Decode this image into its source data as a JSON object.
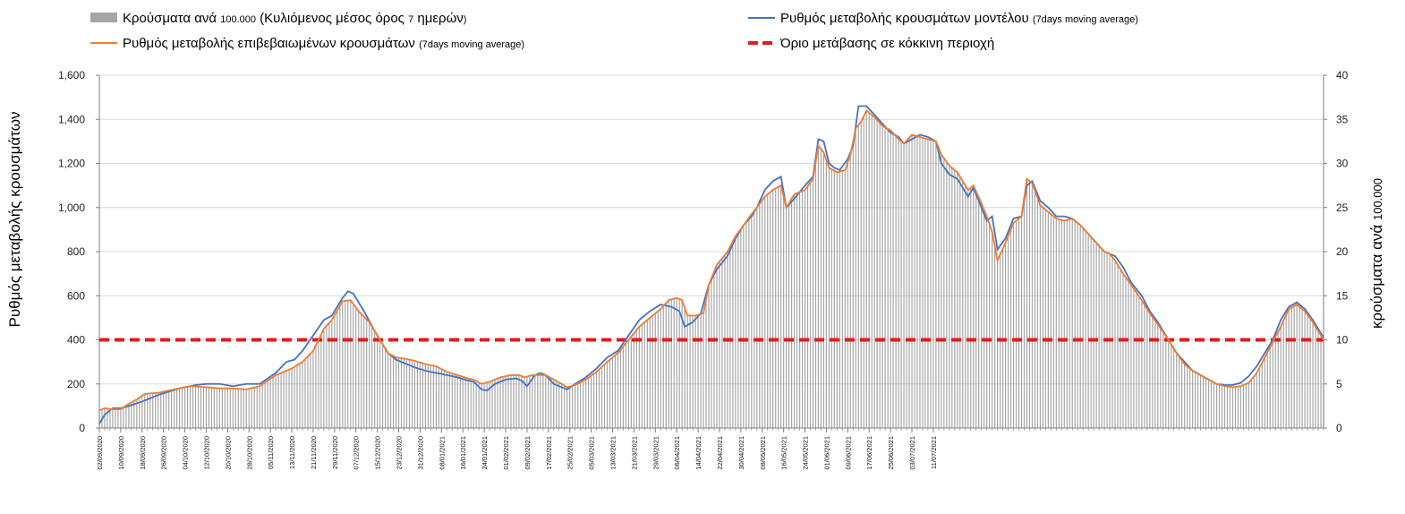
{
  "chart_data": {
    "type": "bar+line",
    "legend": {
      "bars_main": "Κρούσματα ανά",
      "bars_unit": "100.000",
      "bars_paren_open": "(Κυλιόμενος μέσος όρος",
      "bars_seven": "7",
      "bars_paren_close": "ημερών",
      "bars_close_paren": ")",
      "model_main": "Ρυθμός μεταβολής κρουσμάτων μοντέλου",
      "model_small": "(7days moving average)",
      "confirmed_main": "Ρυθμός μεταβολής επιβεβαιωμένων κρουσμάτων",
      "confirmed_small": "(7days moving average)",
      "threshold_main": "Όριο μετάβασης σε κόκκινη περιοχή"
    },
    "ylabel_left": "Ρυθμός μεταβολής κρουσμάτων",
    "ylabel_right_main": "κρούσματα ανά",
    "ylabel_right_unit": "100.000",
    "ylim_left": [
      0,
      1600
    ],
    "ylim_right": [
      0,
      40
    ],
    "left_ticks": [
      "0",
      "200",
      "400",
      "600",
      "800",
      "1,000",
      "1,200",
      "1,400",
      "1,600"
    ],
    "right_ticks": [
      "0",
      "5",
      "10",
      "15",
      "20",
      "25",
      "30",
      "35",
      "40"
    ],
    "x_tick_labels": [
      "02/09/2020",
      "10/09/2020",
      "18/09/2020",
      "26/09/2020",
      "04/10/2020",
      "12/10/2020",
      "20/10/2020",
      "28/10/2020",
      "05/11/2020",
      "13/11/2020",
      "21/11/2020",
      "29/11/2020",
      "07/12/2020",
      "15/12/2020",
      "23/12/2020",
      "31/12/2020",
      "08/01/2021",
      "16/01/2021",
      "24/01/2021",
      "01/02/2021",
      "09/02/2021",
      "17/02/2021",
      "25/02/2021",
      "05/03/2021",
      "13/03/2021",
      "21/03/2021",
      "29/03/2021",
      "06/04/2021",
      "14/04/2021",
      "22/04/2021",
      "30/04/2021",
      "08/05/2021",
      "16/05/2021",
      "24/05/2021",
      "01/06/2021",
      "09/06/2021",
      "17/06/2021",
      "25/06/2021",
      "03/07/2021",
      "11/07/2021"
    ],
    "threshold": 400,
    "colors": {
      "bars": "#a6a6a6",
      "model": "#4472c4",
      "confirmed": "#ed7d31",
      "threshold": "#e41a1c"
    },
    "model_keypoints": [
      [
        0,
        20
      ],
      [
        2,
        60
      ],
      [
        5,
        90
      ],
      [
        8,
        90
      ],
      [
        11,
        100
      ],
      [
        16,
        120
      ],
      [
        22,
        150
      ],
      [
        30,
        180
      ],
      [
        36,
        195
      ],
      [
        40,
        200
      ],
      [
        45,
        200
      ],
      [
        50,
        190
      ],
      [
        55,
        200
      ],
      [
        60,
        200
      ],
      [
        66,
        250
      ],
      [
        70,
        300
      ],
      [
        73,
        310
      ],
      [
        76,
        350
      ],
      [
        80,
        420
      ],
      [
        84,
        490
      ],
      [
        87,
        510
      ],
      [
        91,
        590
      ],
      [
        93,
        620
      ],
      [
        95,
        610
      ],
      [
        99,
        530
      ],
      [
        103,
        440
      ],
      [
        105,
        400
      ],
      [
        108,
        340
      ],
      [
        111,
        310
      ],
      [
        114,
        295
      ],
      [
        118,
        275
      ],
      [
        122,
        260
      ],
      [
        126,
        250
      ],
      [
        130,
        240
      ],
      [
        134,
        230
      ],
      [
        138,
        215
      ],
      [
        140,
        210
      ],
      [
        143,
        175
      ],
      [
        145,
        170
      ],
      [
        148,
        200
      ],
      [
        152,
        220
      ],
      [
        156,
        225
      ],
      [
        158,
        215
      ],
      [
        160,
        190
      ],
      [
        163,
        240
      ],
      [
        165,
        250
      ],
      [
        167,
        240
      ],
      [
        170,
        200
      ],
      [
        173,
        185
      ],
      [
        175,
        175
      ],
      [
        178,
        200
      ],
      [
        182,
        230
      ],
      [
        186,
        270
      ],
      [
        190,
        320
      ],
      [
        194,
        350
      ],
      [
        198,
        420
      ],
      [
        202,
        490
      ],
      [
        206,
        530
      ],
      [
        210,
        560
      ],
      [
        214,
        550
      ],
      [
        217,
        530
      ],
      [
        219,
        460
      ],
      [
        222,
        480
      ],
      [
        225,
        520
      ],
      [
        228,
        650
      ],
      [
        231,
        720
      ],
      [
        235,
        780
      ],
      [
        238,
        860
      ],
      [
        241,
        920
      ],
      [
        244,
        960
      ],
      [
        246,
        1000
      ],
      [
        249,
        1080
      ],
      [
        252,
        1120
      ],
      [
        255,
        1140
      ],
      [
        257,
        1000
      ],
      [
        260,
        1040
      ],
      [
        264,
        1100
      ],
      [
        267,
        1140
      ],
      [
        269,
        1310
      ],
      [
        271,
        1300
      ],
      [
        273,
        1200
      ],
      [
        275,
        1180
      ],
      [
        277,
        1170
      ],
      [
        280,
        1220
      ],
      [
        282,
        1280
      ],
      [
        284,
        1460
      ],
      [
        287,
        1460
      ],
      [
        290,
        1420
      ],
      [
        293,
        1380
      ],
      [
        296,
        1340
      ],
      [
        299,
        1320
      ],
      [
        301,
        1290
      ],
      [
        304,
        1310
      ],
      [
        307,
        1330
      ],
      [
        310,
        1320
      ],
      [
        313,
        1300
      ],
      [
        315,
        1200
      ],
      [
        318,
        1150
      ],
      [
        321,
        1130
      ],
      [
        325,
        1050
      ],
      [
        327,
        1090
      ],
      [
        330,
        1000
      ],
      [
        332,
        940
      ],
      [
        334,
        960
      ],
      [
        336,
        810
      ],
      [
        339,
        860
      ],
      [
        342,
        950
      ],
      [
        345,
        960
      ],
      [
        347,
        1100
      ],
      [
        349,
        1120
      ],
      [
        352,
        1030
      ],
      [
        355,
        1000
      ],
      [
        358,
        960
      ],
      [
        361,
        960
      ],
      [
        364,
        950
      ],
      [
        367,
        920
      ],
      [
        370,
        880
      ],
      [
        373,
        840
      ],
      [
        376,
        800
      ],
      [
        378,
        790
      ],
      [
        380,
        780
      ],
      [
        383,
        730
      ],
      [
        386,
        660
      ],
      [
        390,
        600
      ],
      [
        393,
        530
      ],
      [
        396,
        480
      ],
      [
        400,
        400
      ],
      [
        403,
        340
      ],
      [
        406,
        300
      ],
      [
        409,
        260
      ],
      [
        412,
        240
      ],
      [
        415,
        220
      ],
      [
        418,
        200
      ],
      [
        421,
        195
      ],
      [
        424,
        195
      ],
      [
        427,
        205
      ],
      [
        430,
        235
      ],
      [
        433,
        280
      ],
      [
        436,
        340
      ],
      [
        439,
        400
      ],
      [
        442,
        490
      ],
      [
        445,
        550
      ],
      [
        448,
        570
      ],
      [
        451,
        540
      ],
      [
        454,
        490
      ],
      [
        456,
        450
      ],
      [
        458,
        410
      ]
    ],
    "confirmed_keypoints": [
      [
        0,
        80
      ],
      [
        2,
        90
      ],
      [
        5,
        85
      ],
      [
        8,
        85
      ],
      [
        11,
        110
      ],
      [
        14,
        130
      ],
      [
        17,
        155
      ],
      [
        22,
        160
      ],
      [
        28,
        175
      ],
      [
        34,
        190
      ],
      [
        40,
        185
      ],
      [
        45,
        180
      ],
      [
        50,
        180
      ],
      [
        55,
        175
      ],
      [
        60,
        190
      ],
      [
        66,
        240
      ],
      [
        72,
        270
      ],
      [
        76,
        300
      ],
      [
        80,
        350
      ],
      [
        84,
        450
      ],
      [
        87,
        490
      ],
      [
        91,
        575
      ],
      [
        94,
        580
      ],
      [
        97,
        530
      ],
      [
        101,
        480
      ],
      [
        105,
        400
      ],
      [
        108,
        340
      ],
      [
        111,
        320
      ],
      [
        114,
        315
      ],
      [
        118,
        305
      ],
      [
        122,
        290
      ],
      [
        126,
        280
      ],
      [
        130,
        255
      ],
      [
        134,
        240
      ],
      [
        138,
        225
      ],
      [
        140,
        220
      ],
      [
        143,
        200
      ],
      [
        146,
        210
      ],
      [
        150,
        230
      ],
      [
        154,
        240
      ],
      [
        157,
        240
      ],
      [
        159,
        230
      ],
      [
        162,
        240
      ],
      [
        165,
        240
      ],
      [
        167,
        240
      ],
      [
        170,
        220
      ],
      [
        173,
        200
      ],
      [
        175,
        185
      ],
      [
        178,
        195
      ],
      [
        182,
        220
      ],
      [
        186,
        255
      ],
      [
        190,
        300
      ],
      [
        194,
        340
      ],
      [
        198,
        400
      ],
      [
        202,
        460
      ],
      [
        206,
        500
      ],
      [
        210,
        540
      ],
      [
        213,
        580
      ],
      [
        216,
        590
      ],
      [
        218,
        580
      ],
      [
        220,
        510
      ],
      [
        223,
        510
      ],
      [
        226,
        520
      ],
      [
        228,
        650
      ],
      [
        231,
        740
      ],
      [
        235,
        800
      ],
      [
        238,
        870
      ],
      [
        241,
        920
      ],
      [
        244,
        970
      ],
      [
        246,
        1000
      ],
      [
        249,
        1050
      ],
      [
        252,
        1080
      ],
      [
        255,
        1100
      ],
      [
        257,
        1000
      ],
      [
        260,
        1060
      ],
      [
        264,
        1080
      ],
      [
        267,
        1130
      ],
      [
        269,
        1280
      ],
      [
        271,
        1250
      ],
      [
        273,
        1180
      ],
      [
        276,
        1160
      ],
      [
        279,
        1170
      ],
      [
        281,
        1240
      ],
      [
        283,
        1360
      ],
      [
        285,
        1390
      ],
      [
        287,
        1440
      ],
      [
        290,
        1410
      ],
      [
        293,
        1370
      ],
      [
        296,
        1350
      ],
      [
        299,
        1310
      ],
      [
        301,
        1290
      ],
      [
        304,
        1330
      ],
      [
        307,
        1320
      ],
      [
        310,
        1310
      ],
      [
        313,
        1300
      ],
      [
        315,
        1240
      ],
      [
        318,
        1190
      ],
      [
        321,
        1160
      ],
      [
        325,
        1080
      ],
      [
        327,
        1100
      ],
      [
        330,
        1020
      ],
      [
        332,
        960
      ],
      [
        334,
        890
      ],
      [
        336,
        760
      ],
      [
        339,
        840
      ],
      [
        342,
        930
      ],
      [
        345,
        960
      ],
      [
        347,
        1130
      ],
      [
        349,
        1110
      ],
      [
        352,
        1010
      ],
      [
        355,
        980
      ],
      [
        358,
        950
      ],
      [
        361,
        940
      ],
      [
        364,
        950
      ],
      [
        367,
        920
      ],
      [
        370,
        880
      ],
      [
        373,
        840
      ],
      [
        376,
        800
      ],
      [
        378,
        790
      ],
      [
        380,
        760
      ],
      [
        383,
        700
      ],
      [
        386,
        650
      ],
      [
        390,
        580
      ],
      [
        393,
        520
      ],
      [
        396,
        470
      ],
      [
        400,
        400
      ],
      [
        403,
        340
      ],
      [
        406,
        290
      ],
      [
        409,
        260
      ],
      [
        412,
        240
      ],
      [
        415,
        220
      ],
      [
        418,
        200
      ],
      [
        421,
        190
      ],
      [
        424,
        185
      ],
      [
        427,
        190
      ],
      [
        430,
        205
      ],
      [
        433,
        250
      ],
      [
        436,
        320
      ],
      [
        439,
        390
      ],
      [
        442,
        460
      ],
      [
        445,
        540
      ],
      [
        448,
        560
      ],
      [
        451,
        530
      ],
      [
        454,
        480
      ],
      [
        456,
        440
      ],
      [
        458,
        400
      ]
    ]
  }
}
